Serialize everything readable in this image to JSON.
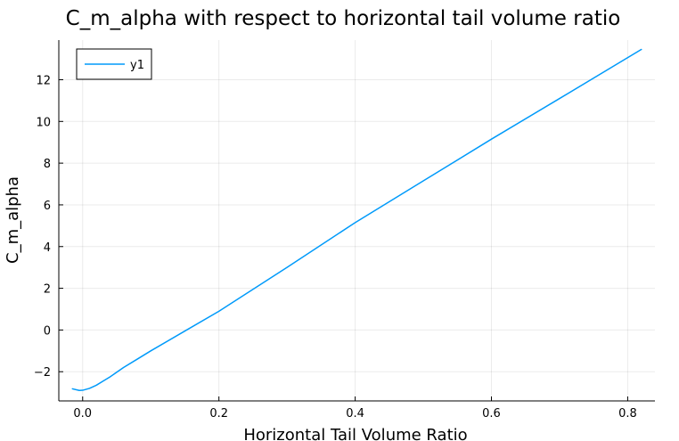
{
  "chart_data": {
    "type": "line",
    "title": "C_m_alpha with respect to horizontal tail volume ratio",
    "xlabel": "Horizontal Tail Volume Ratio",
    "ylabel": "C_m_alpha",
    "xlim": [
      -0.035,
      0.84
    ],
    "ylim": [
      -3.4,
      13.9
    ],
    "xticks": [
      0.0,
      0.2,
      0.4,
      0.6,
      0.8
    ],
    "xtick_labels": [
      "0.0",
      "0.2",
      "0.4",
      "0.6",
      "0.8"
    ],
    "yticks": [
      -2,
      0,
      2,
      4,
      6,
      8,
      10,
      12
    ],
    "ytick_labels": [
      "−2",
      "0",
      "2",
      "4",
      "6",
      "8",
      "10",
      "12"
    ],
    "grid": true,
    "legend": {
      "position": "top-left"
    },
    "series": [
      {
        "name": "y1",
        "color": "#009AFA",
        "x": [
          -0.015,
          -0.005,
          0.0,
          0.01,
          0.02,
          0.03,
          0.04,
          0.06,
          0.08,
          0.1,
          0.15,
          0.2,
          0.3,
          0.4,
          0.5,
          0.6,
          0.7,
          0.82
        ],
        "y": [
          -2.82,
          -2.9,
          -2.89,
          -2.8,
          -2.65,
          -2.45,
          -2.25,
          -1.8,
          -1.4,
          -1.0,
          -0.05,
          0.9,
          3.0,
          5.15,
          7.15,
          9.15,
          11.1,
          13.45
        ]
      }
    ]
  }
}
